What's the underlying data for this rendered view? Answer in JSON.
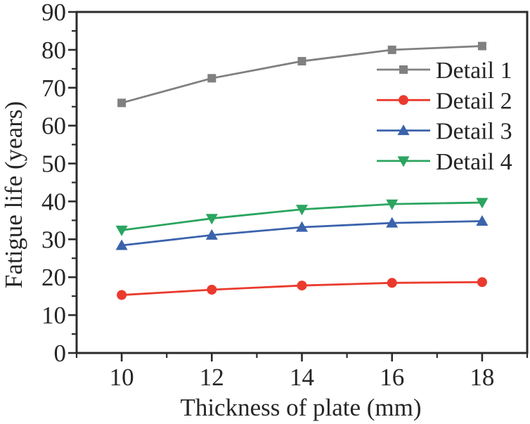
{
  "figure": {
    "background": "#ffffff",
    "axis_color": "#2b2b2b",
    "text_color": "#262626"
  },
  "chart_data": {
    "type": "line",
    "title": "",
    "xlabel": "Thickness of plate (mm)",
    "ylabel": "Fatigue life (years)",
    "x": [
      10,
      12,
      14,
      16,
      18
    ],
    "xlim": [
      9,
      19
    ],
    "ylim": [
      0,
      90
    ],
    "x_major_ticks": [
      10,
      12,
      14,
      16,
      18
    ],
    "x_minor_ticks": [
      9,
      11,
      13,
      15,
      17,
      19
    ],
    "y_major_ticks": [
      0,
      10,
      20,
      30,
      40,
      50,
      60,
      70,
      80,
      90
    ],
    "y_minor_ticks": [
      5,
      15,
      25,
      35,
      45,
      55,
      65,
      75,
      85
    ],
    "grid": false,
    "legend_position": "upper-right-inside",
    "series": [
      {
        "name": "Detail 1",
        "color": "#808080",
        "marker": "square",
        "values": [
          66.0,
          72.5,
          77.0,
          80.0,
          81.0
        ]
      },
      {
        "name": "Detail 2",
        "color": "#ea3a2d",
        "marker": "circle",
        "values": [
          15.3,
          16.7,
          17.8,
          18.5,
          18.7
        ]
      },
      {
        "name": "Detail 3",
        "color": "#3b63ac",
        "marker": "triangle-up",
        "values": [
          28.4,
          31.1,
          33.2,
          34.3,
          34.8
        ]
      },
      {
        "name": "Detail 4",
        "color": "#2aa55f",
        "marker": "triangle-down",
        "values": [
          32.4,
          35.5,
          37.9,
          39.3,
          39.7
        ]
      }
    ]
  }
}
